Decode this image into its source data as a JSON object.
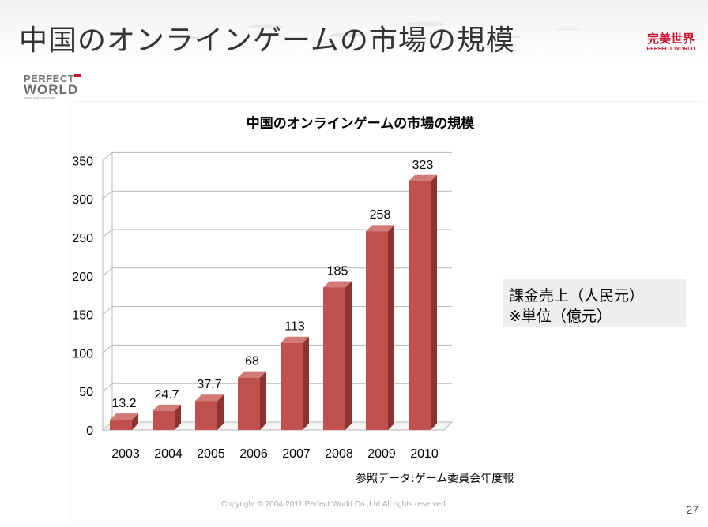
{
  "page": {
    "title": "中国のオンラインゲームの市場の規模",
    "page_number": "27",
    "copyright": "Copyright © 2004-2011 Perfect World Co.,Ltd.All rights reserved.",
    "source_note": "参照データ:ゲーム委員会年度報"
  },
  "logos": {
    "left": {
      "line1": "PERFECT",
      "line2": "WORLD",
      "line3": "www.wanmei.com"
    },
    "right": {
      "line1": "完美世界",
      "line2": "PERFECT WORLD"
    }
  },
  "note_box": {
    "line1": "課金売上（人民元）",
    "line2": "※単位（億元）"
  },
  "colors": {
    "bar_front": "#c0504d",
    "bar_side": "#8c3431",
    "bar_top": "#d27a77",
    "gridline": "#b7b7b7",
    "brand_red": "#c8102e"
  },
  "chart_data": {
    "type": "bar",
    "three_d": true,
    "title": "中国のオンラインゲームの市場の規模",
    "categories": [
      "2003",
      "2004",
      "2005",
      "2006",
      "2007",
      "2008",
      "2009",
      "2010"
    ],
    "values": [
      13.2,
      24.7,
      37.7,
      68,
      113,
      185,
      258,
      323
    ],
    "data_labels": [
      "13.2",
      "24.7",
      "37.7",
      "68",
      "113",
      "185",
      "258",
      "323"
    ],
    "y_ticks": [
      "0",
      "50",
      "100",
      "150",
      "200",
      "250",
      "300",
      "350"
    ],
    "ylim": [
      0,
      350
    ],
    "grid": true,
    "legend": "none"
  }
}
